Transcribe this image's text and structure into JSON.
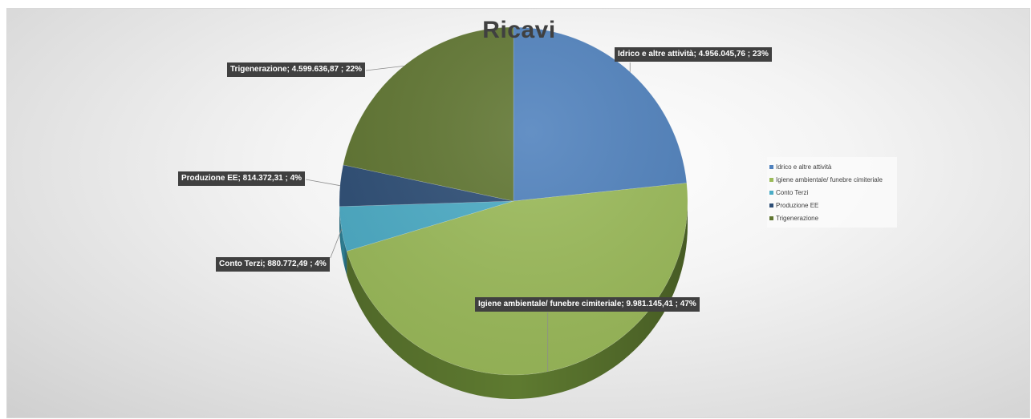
{
  "chart_data": {
    "type": "pie",
    "title": "Ricavi",
    "categories": [
      "Idrico e altre attività",
      "Igiene ambientale/ funebre cimiteriale",
      "Conto Terzi",
      "Produzione EE",
      "Trigenerazione"
    ],
    "values": [
      4956045.76,
      9981145.41,
      880772.49,
      814372.31,
      4599636.87
    ],
    "value_labels": [
      "4.956.045,76",
      "9.981.145,41",
      "880.772,49",
      "814.372,31",
      "4.599.636,87"
    ],
    "percent_labels": [
      "23%",
      "47%",
      "4%",
      "4%",
      "22%"
    ],
    "data_labels": [
      "Idrico e altre attività; 4.956.045,76 ; 23%",
      "Igiene ambientale/ funebre cimiteriale; 9.981.145,41 ; 47%",
      "Conto Terzi; 880.772,49 ; 4%",
      "Produzione EE; 814.372,31 ; 4%",
      "Trigenerazione; 4.599.636,87 ; 22%"
    ],
    "colors": [
      "#4f81bd",
      "#9bbb59",
      "#4bacc6",
      "#2c4d75",
      "#5f7530"
    ],
    "side_colors": [
      "#345b8c",
      "#5e7a30",
      "#2f7f94",
      "#1c3252",
      "#3c4c1d"
    ],
    "legend": {
      "placement": "right",
      "entries": [
        "Idrico e altre attività",
        "Igiene ambientale/ funebre cimiteriale",
        "Conto Terzi",
        "Produzione EE",
        "Trigenerazione"
      ]
    },
    "style": "3d-pie",
    "start": "12 o'clock, clockwise"
  }
}
